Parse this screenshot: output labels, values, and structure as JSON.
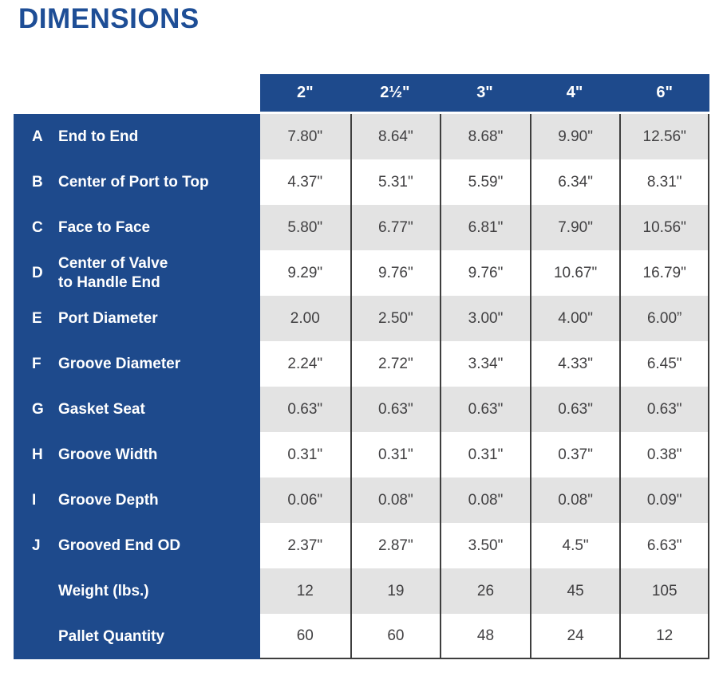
{
  "page": {
    "title": "DIMENSIONS"
  },
  "colors": {
    "brand_blue": "#1e4a8c",
    "title_blue": "#1e4e96",
    "row_gray": "#e3e3e3",
    "grid_line": "#3e3e3e",
    "value_text": "#414042"
  },
  "table": {
    "columns": [
      "2\"",
      "2½\"",
      "3\"",
      "4\"",
      "6\""
    ],
    "rows": [
      {
        "letter": "A",
        "label": "End to End",
        "values": [
          "7.80\"",
          "8.64\"",
          "8.68\"",
          "9.90\"",
          "12.56\""
        ]
      },
      {
        "letter": "B",
        "label": "Center of Port to Top",
        "values": [
          "4.37\"",
          "5.31\"",
          "5.59\"",
          "6.34\"",
          "8.31\""
        ]
      },
      {
        "letter": "C",
        "label": "Face to Face",
        "values": [
          "5.80\"",
          "6.77\"",
          "6.81\"",
          "7.90\"",
          "10.56\""
        ]
      },
      {
        "letter": "D",
        "label": "Center of Valve\nto Handle End",
        "values": [
          "9.29\"",
          "9.76\"",
          "9.76\"",
          "10.67\"",
          "16.79\""
        ]
      },
      {
        "letter": "E",
        "label": "Port Diameter",
        "values": [
          "2.00",
          "2.50\"",
          "3.00\"",
          "4.00\"",
          "6.00”"
        ]
      },
      {
        "letter": "F",
        "label": "Groove Diameter",
        "values": [
          "2.24\"",
          "2.72\"",
          "3.34\"",
          "4.33\"",
          "6.45\""
        ]
      },
      {
        "letter": "G",
        "label": "Gasket Seat",
        "values": [
          "0.63\"",
          "0.63\"",
          "0.63\"",
          "0.63\"",
          "0.63\""
        ]
      },
      {
        "letter": "H",
        "label": "Groove Width",
        "values": [
          "0.31\"",
          "0.31\"",
          "0.31\"",
          "0.37\"",
          "0.38\""
        ]
      },
      {
        "letter": "I",
        "label": "Groove Depth",
        "values": [
          "0.06\"",
          "0.08\"",
          "0.08\"",
          "0.08\"",
          "0.09\""
        ]
      },
      {
        "letter": "J",
        "label": "Grooved End OD",
        "values": [
          "2.37\"",
          "2.87\"",
          "3.50\"",
          "4.5\"",
          "6.63\""
        ]
      },
      {
        "letter": "",
        "label": "Weight (lbs.)",
        "values": [
          "12",
          "19",
          "26",
          "45",
          "105"
        ]
      },
      {
        "letter": "",
        "label": "Pallet Quantity",
        "values": [
          "60",
          "60",
          "48",
          "24",
          "12"
        ]
      }
    ]
  }
}
